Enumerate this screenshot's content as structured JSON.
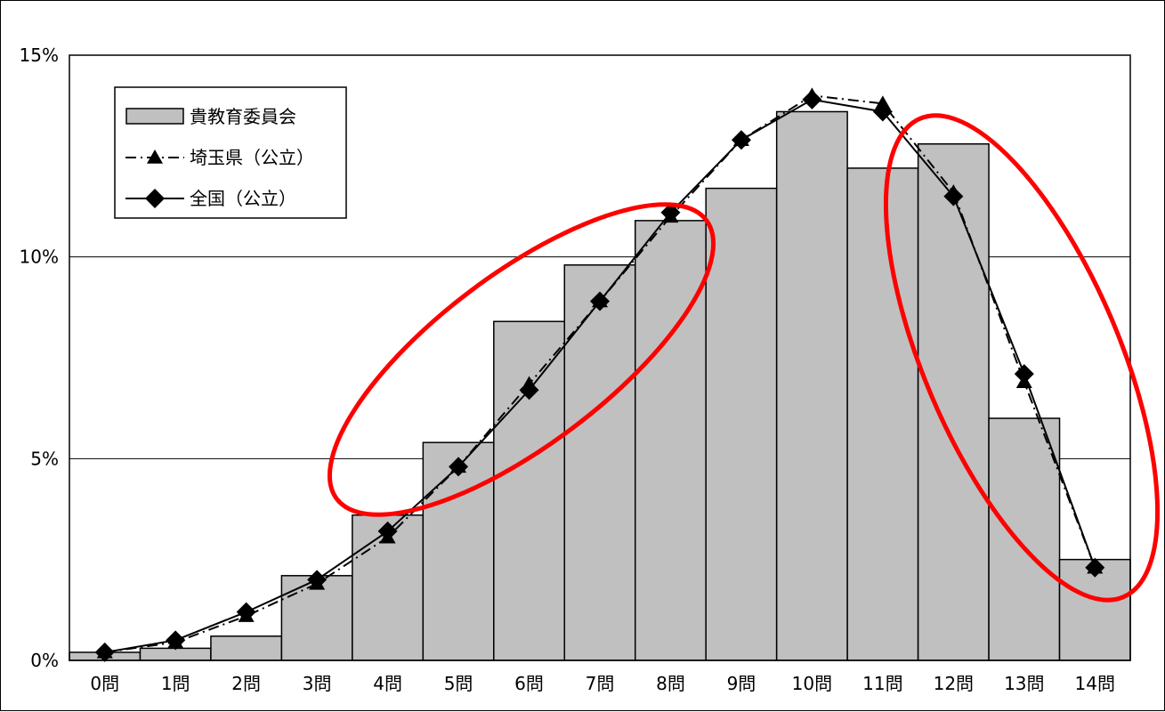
{
  "chart_data": {
    "type": "bar",
    "categories": [
      "0問",
      "1問",
      "2問",
      "3問",
      "4問",
      "5問",
      "6問",
      "7問",
      "8問",
      "9問",
      "10問",
      "11問",
      "12問",
      "13問",
      "14問"
    ],
    "ylim": [
      0,
      15
    ],
    "y_ticks": [
      0,
      5,
      10,
      15
    ],
    "y_tick_labels": [
      "0%",
      "5%",
      "10%",
      "15%"
    ],
    "grid": true,
    "legend_position": "top-left",
    "series": [
      {
        "name": "貴教育委員会",
        "kind": "bar",
        "color": "#c0c0c0",
        "values": [
          0.2,
          0.3,
          0.6,
          2.1,
          3.6,
          5.4,
          8.4,
          9.8,
          10.9,
          11.7,
          13.6,
          12.2,
          12.8,
          6.0,
          2.5
        ]
      },
      {
        "name": "埼玉県（公立）",
        "kind": "line",
        "style": "dashdot",
        "marker": "triangle",
        "color": "#000000",
        "values": [
          0.2,
          0.45,
          1.1,
          1.9,
          3.05,
          4.8,
          6.85,
          8.9,
          11.0,
          12.9,
          14.0,
          13.8,
          11.6,
          6.9,
          2.3
        ]
      },
      {
        "name": "全国（公立）",
        "kind": "line",
        "style": "solid",
        "marker": "diamond",
        "color": "#000000",
        "values": [
          0.2,
          0.5,
          1.2,
          2.0,
          3.2,
          4.8,
          6.7,
          8.9,
          11.1,
          12.9,
          13.9,
          13.6,
          11.5,
          7.1,
          2.3
        ]
      }
    ],
    "annotations": [
      {
        "shape": "ellipse",
        "color": "#ff0000",
        "around": "4問-8問"
      },
      {
        "shape": "ellipse",
        "color": "#ff0000",
        "around": "12問-14問"
      }
    ]
  }
}
